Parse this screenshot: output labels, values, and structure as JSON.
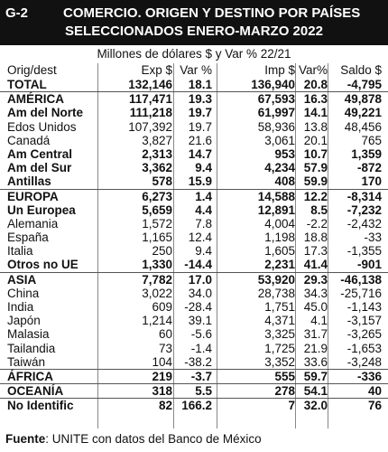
{
  "header": {
    "code": "G-2",
    "title_line1": "COMERCIO. ORIGEN Y DESTINO POR PAÍSES",
    "title_line2": "SELECCIONADOS ENERO-MARZO 2022"
  },
  "subtitle": "Millones de dólares $ y Var % 22/21",
  "columns": [
    "Orig/dest",
    "Exp $",
    "Var %",
    "Imp $",
    "Var%",
    "Saldo $"
  ],
  "rows": [
    {
      "name": "TOTAL",
      "exp": "132,146",
      "var1": "18.1",
      "imp": "136,940",
      "var2": "20.8",
      "saldo": "-4,795",
      "bold": true,
      "line": true
    },
    {
      "name": "AMÉRICA",
      "exp": "117,471",
      "var1": "19.3",
      "imp": "67,593",
      "var2": "16.3",
      "saldo": "49,878",
      "bold": true
    },
    {
      "name": "Am del Norte",
      "exp": "111,218",
      "var1": "19.7",
      "imp": "61,997",
      "var2": "14.1",
      "saldo": "49,221",
      "bold": true
    },
    {
      "name": "Edos Unidos",
      "exp": "107,392",
      "var1": "19.7",
      "imp": "58,936",
      "var2": "13.8",
      "saldo": "48,456"
    },
    {
      "name": "Canadá",
      "exp": "3,827",
      "var1": "21.6",
      "imp": "3,061",
      "var2": "20.1",
      "saldo": "765"
    },
    {
      "name": "Am Central",
      "exp": "2,313",
      "var1": "14.7",
      "imp": "953",
      "var2": "10.7",
      "saldo": "1,359",
      "bold": true
    },
    {
      "name": "Am del Sur",
      "exp": "3,362",
      "var1": "9.4",
      "imp": "4,234",
      "var2": "57.9",
      "saldo": "-872",
      "bold": true
    },
    {
      "name": "Antillas",
      "exp": "578",
      "var1": "15.9",
      "imp": "408",
      "var2": "59.9",
      "saldo": "170",
      "bold": true,
      "line": true
    },
    {
      "name": "EUROPA",
      "exp": "6,273",
      "var1": "1.4",
      "imp": "14,588",
      "var2": "12.2",
      "saldo": "-8,314",
      "bold": true
    },
    {
      "name": "Un Europea",
      "exp": "5,659",
      "var1": "4.4",
      "imp": "12,891",
      "var2": "8.5",
      "saldo": "-7,232",
      "bold": true
    },
    {
      "name": "Alemania",
      "exp": "1,572",
      "var1": "7.8",
      "imp": "4,004",
      "var2": "-2.2",
      "saldo": "-2,432"
    },
    {
      "name": "España",
      "exp": "1,165",
      "var1": "12.4",
      "imp": "1,198",
      "var2": "18.8",
      "saldo": "-33"
    },
    {
      "name": "Italia",
      "exp": "250",
      "var1": "9.4",
      "imp": "1,605",
      "var2": "17.3",
      "saldo": "-1,355"
    },
    {
      "name": "Otros no UE",
      "exp": "1,330",
      "var1": "-14.4",
      "imp": "2,231",
      "var2": "41.4",
      "saldo": "-901",
      "bold": true,
      "line": true
    },
    {
      "name": "ASIA",
      "exp": "7,782",
      "var1": "17.0",
      "imp": "53,920",
      "var2": "29.3",
      "saldo": "-46,138",
      "bold": true
    },
    {
      "name": "China",
      "exp": "3,022",
      "var1": "34.0",
      "imp": "28,738",
      "var2": "34.3",
      "saldo": "-25,716"
    },
    {
      "name": "India",
      "exp": "609",
      "var1": "-28.4",
      "imp": "1,751",
      "var2": "45.0",
      "saldo": "-1,143"
    },
    {
      "name": "Japón",
      "exp": "1,214",
      "var1": "39.1",
      "imp": "4,371",
      "var2": "4.1",
      "saldo": "-3,157"
    },
    {
      "name": "Malasia",
      "exp": "60",
      "var1": "-5.6",
      "imp": "3,325",
      "var2": "31.7",
      "saldo": "-3,265"
    },
    {
      "name": "Tailandia",
      "exp": "73",
      "var1": "-1.4",
      "imp": "1,725",
      "var2": "21.9",
      "saldo": "-1,653"
    },
    {
      "name": "Taiwán",
      "exp": "104",
      "var1": "-38.2",
      "imp": "3,352",
      "var2": "33.6",
      "saldo": "-3,248",
      "line": true
    },
    {
      "name": "ÁFRICA",
      "exp": "219",
      "var1": "-3.7",
      "imp": "555",
      "var2": "59.7",
      "saldo": "-336",
      "bold": true,
      "line": true
    },
    {
      "name": "OCEANÍA",
      "exp": "318",
      "var1": "5.5",
      "imp": "278",
      "var2": "54.1",
      "saldo": "40",
      "bold": true,
      "line": true
    },
    {
      "name": "No Identific",
      "exp": "82",
      "var1": "166.2",
      "imp": "7",
      "var2": "32.0",
      "saldo": "76",
      "bold": true
    }
  ],
  "footer": {
    "label": "Fuente",
    "text": ": UNITE con datos del Banco de México"
  }
}
